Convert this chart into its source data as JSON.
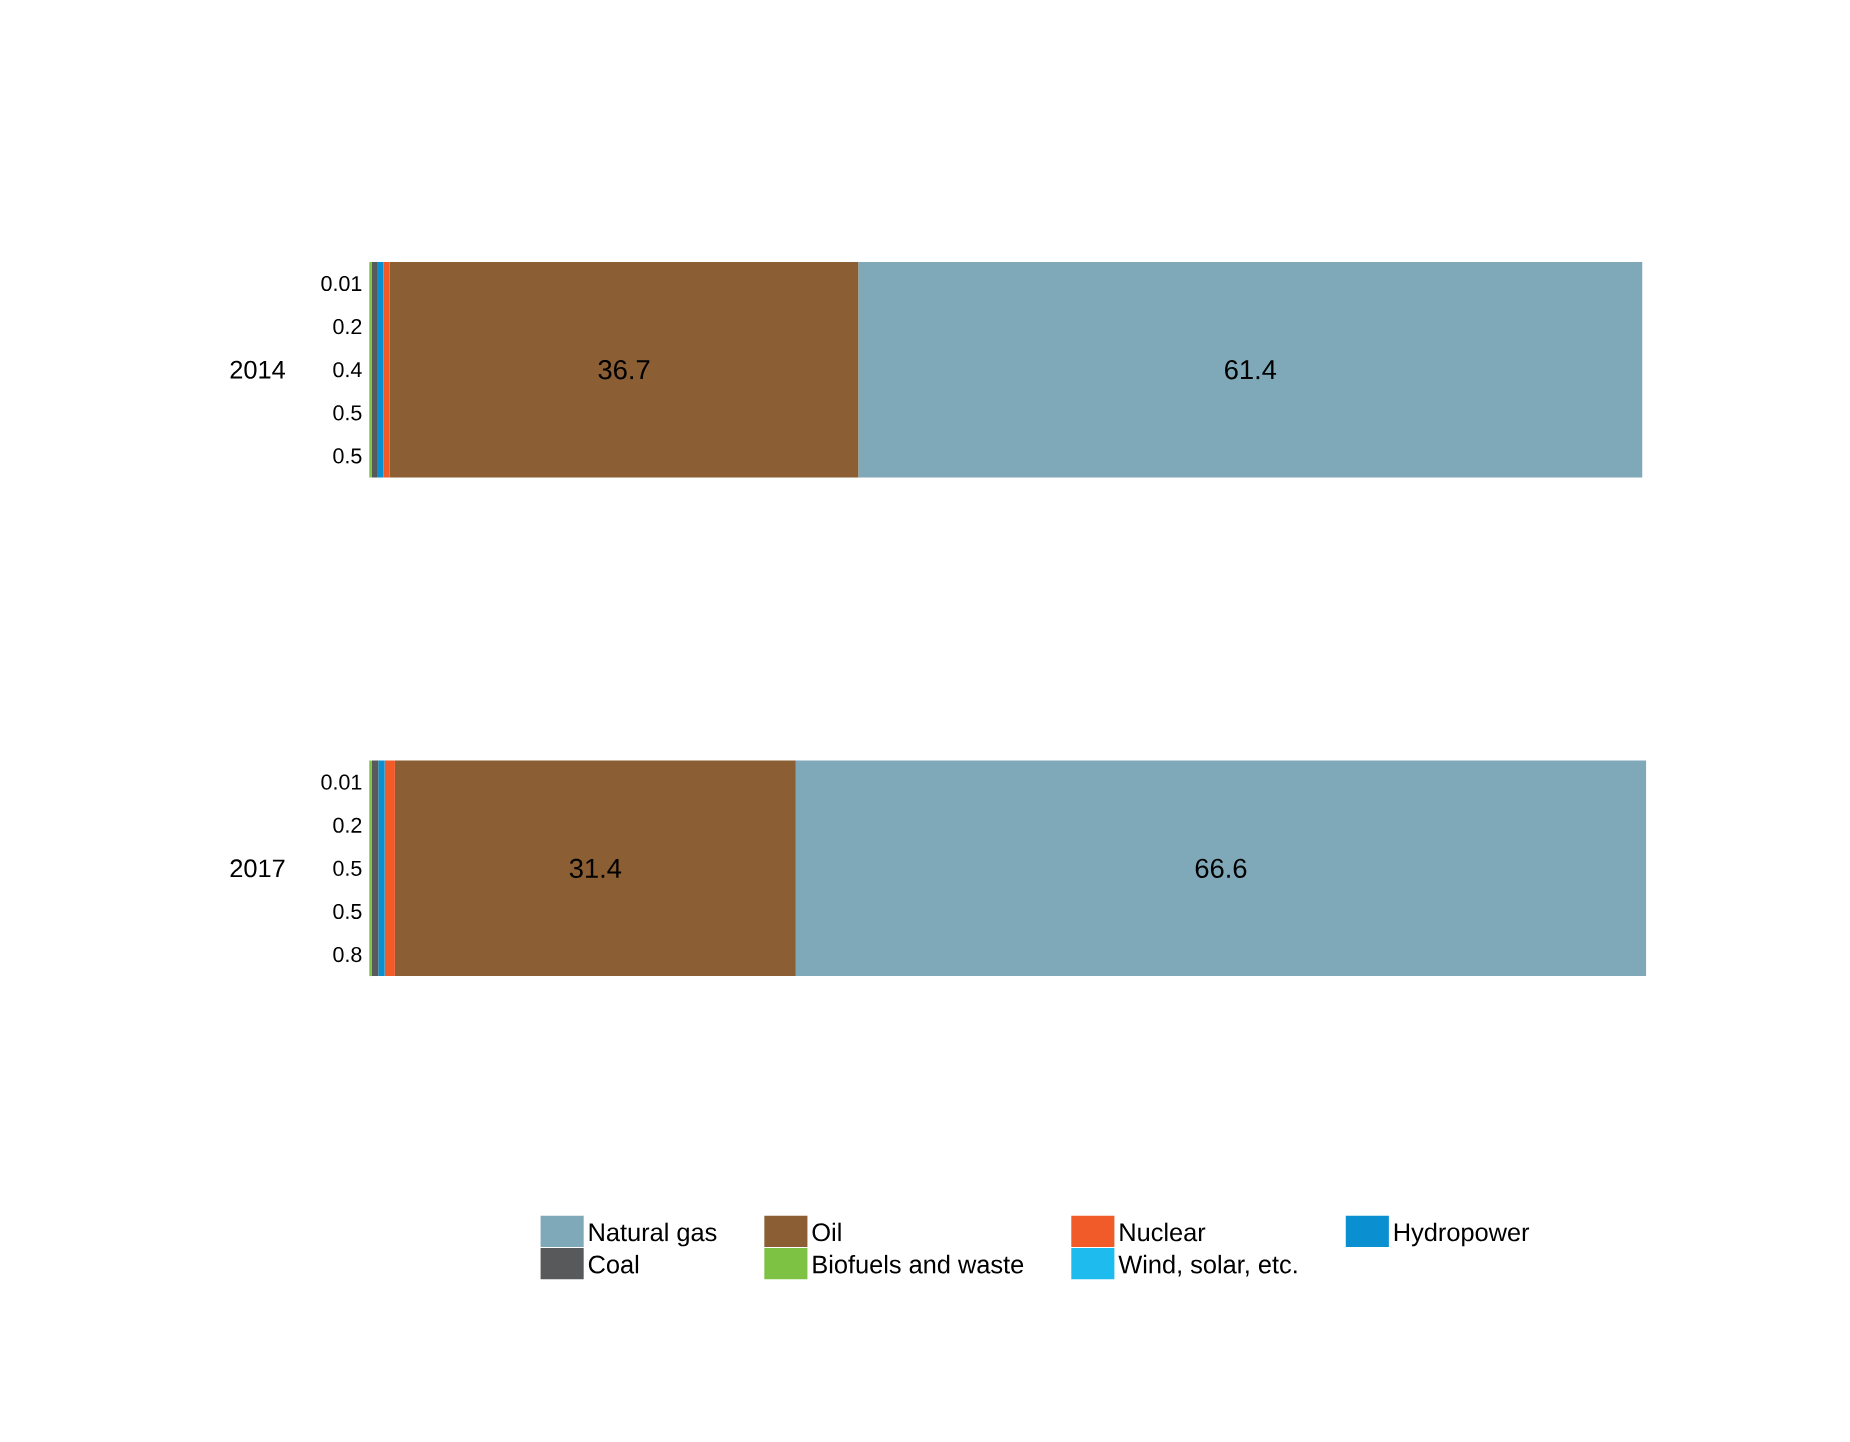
{
  "chart_data": {
    "type": "bar",
    "orientation": "horizontal",
    "stacked": true,
    "data_labels": true,
    "legend": "bottom",
    "categories": [
      "2014",
      "2017"
    ],
    "series": [
      {
        "name": "Wind, solar, etc.",
        "color": "#1ebbee",
        "values": [
          0.01,
          0.01
        ]
      },
      {
        "name": "Biofuels and waste",
        "color": "#7dc242",
        "values": [
          0.2,
          0.2
        ]
      },
      {
        "name": "Coal",
        "color": "#58595b",
        "values": [
          0.4,
          0.5
        ]
      },
      {
        "name": "Hydropower",
        "color": "#0a8fd0",
        "values": [
          0.5,
          0.5
        ]
      },
      {
        "name": "Nuclear",
        "color": "#f15a29",
        "values": [
          0.5,
          0.8
        ]
      },
      {
        "name": "Oil",
        "color": "#8b5e34",
        "values": [
          36.7,
          31.4
        ]
      },
      {
        "name": "Natural gas",
        "color": "#7fa8b9",
        "values": [
          61.4,
          66.6
        ]
      }
    ]
  }
}
